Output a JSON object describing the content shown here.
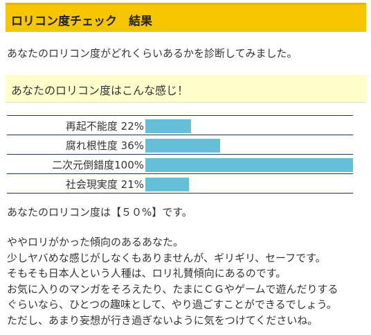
{
  "header": {
    "title": "ロリコン度チェック　結果"
  },
  "intro": "あなたのロリコン度がどれくらいあるかを診断してみました。",
  "result_box": {
    "text": "あなたのロリコン度はこんな感じ！"
  },
  "stats": [
    {
      "label": "再起不能度",
      "value_text": "22%",
      "value": 22
    },
    {
      "label": "腐れ根性度",
      "value_text": "36%",
      "value": 36
    },
    {
      "label": "二次元倒錯度",
      "value_text": "100%",
      "value": 100
    },
    {
      "label": "社会現実度",
      "value_text": "21%",
      "value": 21
    }
  ],
  "summary": "あなたのロリコン度は【５０%】です。",
  "description": [
    "ややロリがかった傾向のあるあなた。",
    "少しヤバめな感じがしなくもありませんが、ギリギリ、セーフです。",
    "そもそも日本人という人種は、ロリ礼賛傾向にあるのです。",
    "お気に入りのマンガをそろえたり、たまにＣＧやゲームで遊んだりする",
    "ぐらいなら、ひとつの趣味として、やり過ごすことができるでしょう。",
    "ただし、あまり妄想が行き過ぎないように気をつけてくださいね。"
  ],
  "colors": {
    "title_bg": "#f7c600",
    "result_bg": "#ffffcc",
    "bar": "#66bfd9",
    "rule": "#1f3a5a"
  }
}
